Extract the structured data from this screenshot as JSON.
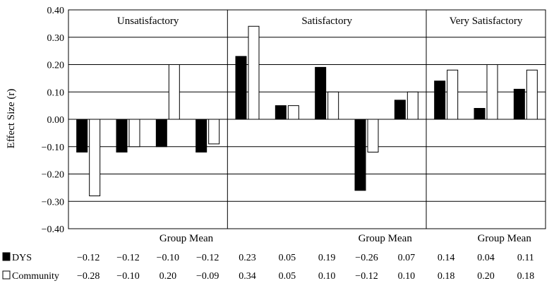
{
  "chart_data": {
    "type": "bar",
    "ylabel": "Effect Size (r)",
    "ylim": [
      -0.4,
      0.4
    ],
    "yticks": [
      "0.40",
      "0.30",
      "0.20",
      "0.10",
      "0.00",
      "−0.10",
      "−0.20",
      "−0.30",
      "−0.40"
    ],
    "grid": true,
    "groups": [
      {
        "label": "Unsatisfactory",
        "count": 4
      },
      {
        "label": "Satisfactory",
        "count": 5
      },
      {
        "label": "Very Satisfactory",
        "count": 3
      }
    ],
    "category_labels": [
      "",
      "",
      "",
      "Group Mean",
      "",
      "",
      "",
      "",
      "Group Mean",
      "",
      "",
      "Group Mean"
    ],
    "series": [
      {
        "name": "DYS",
        "color": "#000000",
        "values": [
          -0.12,
          -0.12,
          -0.1,
          -0.12,
          0.23,
          0.05,
          0.19,
          -0.26,
          0.07,
          0.14,
          0.04,
          0.11
        ],
        "labels": [
          "−0.12",
          "−0.12",
          "−0.10",
          "−0.12",
          "0.23",
          "0.05",
          "0.19",
          "−0.26",
          "0.07",
          "0.14",
          "0.04",
          "0.11"
        ]
      },
      {
        "name": "Community",
        "color": "#ffffff",
        "values": [
          -0.28,
          -0.1,
          0.2,
          -0.09,
          0.34,
          0.05,
          0.1,
          -0.12,
          0.1,
          0.18,
          0.2,
          0.18
        ],
        "labels": [
          "−0.28",
          "−0.10",
          "0.20",
          "−0.09",
          "0.34",
          "0.05",
          "0.10",
          "−0.12",
          "0.10",
          "0.18",
          "0.20",
          "0.18"
        ]
      }
    ]
  }
}
